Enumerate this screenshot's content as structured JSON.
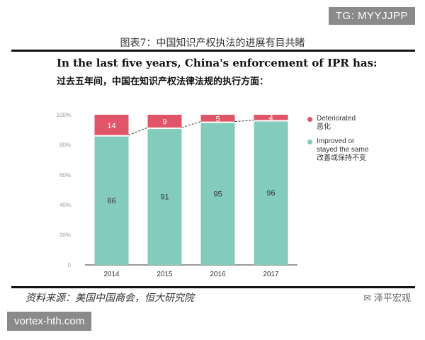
{
  "tag_top": "TG: MYYJJPP",
  "figure_title": "图表7：中国知识产权执法的进展有目共睹",
  "heading_en": "In the last five years, China's enforcement of IPR has:",
  "heading_zh": "过去五年间，中国在知识产权法律法规的执行方面：",
  "source": "资料来源：美国中国商会，恒大研究院",
  "logo_text": "泽平宏观",
  "tag_bottom": "vortex-hth.com",
  "colors": {
    "improved": "#83cbbd",
    "deteriorated": "#e05567",
    "axis_text": "#999999"
  },
  "chart_data": {
    "type": "bar",
    "stacked": true,
    "categories": [
      "2014",
      "2015",
      "2016",
      "2017"
    ],
    "series": [
      {
        "name": "Improved or stayed the same 改善或保持不变",
        "values": [
          86,
          91,
          95,
          96
        ]
      },
      {
        "name": "Deteriorated 恶化",
        "values": [
          14,
          9,
          5,
          4
        ]
      }
    ],
    "ylim": [
      0,
      100
    ],
    "yticks": [
      "0",
      "20%",
      "40%",
      "60%",
      "80%",
      "100%"
    ],
    "title": "",
    "xlabel": "",
    "ylabel": "",
    "trend_line": "dashed, connecting the top of the Improved segment across years",
    "legend": [
      {
        "lines": [
          "Deteriorated",
          "恶化"
        ],
        "color_key": "deteriorated"
      },
      {
        "lines": [
          "Improved or",
          "stayed the same",
          "改善或保持不变"
        ],
        "color_key": "improved"
      }
    ],
    "legend_position": "right"
  }
}
